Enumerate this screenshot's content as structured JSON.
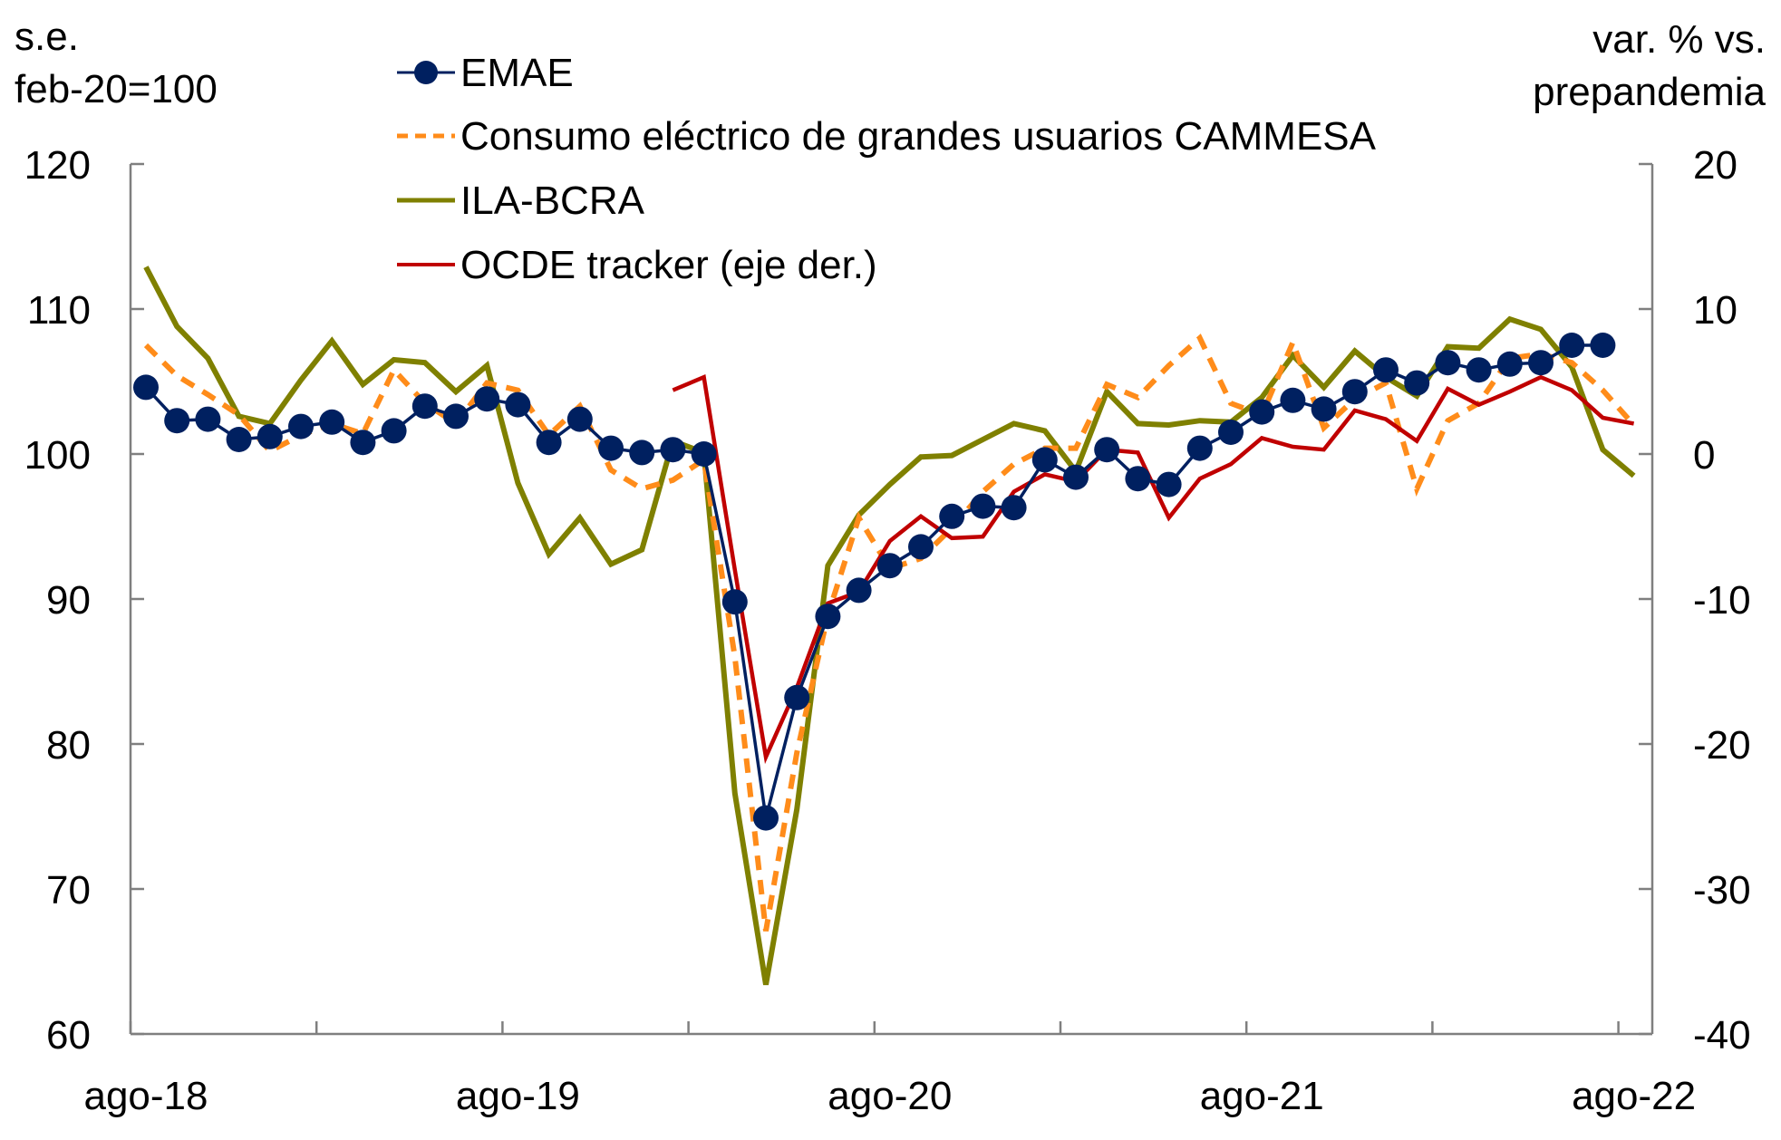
{
  "chart_data": {
    "type": "line",
    "title": "",
    "left_axis": {
      "label_lines": [
        "s.e.",
        "feb-20=100"
      ],
      "ylim": [
        60,
        120
      ],
      "ticks": [
        60,
        70,
        80,
        90,
        100,
        110,
        120
      ],
      "tick_labels": [
        "60",
        "70",
        "80",
        "90",
        "100",
        "110",
        "120"
      ]
    },
    "right_axis": {
      "label_lines": [
        "var. % vs.",
        "prepandemia"
      ],
      "ylim": [
        -40,
        20
      ],
      "ticks": [
        -40,
        -30,
        -20,
        -10,
        0,
        10,
        20
      ],
      "tick_labels": [
        "-40",
        "-30",
        "-20",
        "-10",
        "0",
        "10",
        "20"
      ]
    },
    "x": [
      "ago-18",
      "sep-18",
      "oct-18",
      "nov-18",
      "dic-18",
      "ene-19",
      "feb-19",
      "mar-19",
      "abr-19",
      "may-19",
      "jun-19",
      "jul-19",
      "ago-19",
      "sep-19",
      "oct-19",
      "nov-19",
      "dic-19",
      "ene-20",
      "feb-20",
      "mar-20",
      "abr-20",
      "may-20",
      "jun-20",
      "jul-20",
      "ago-20",
      "sep-20",
      "oct-20",
      "nov-20",
      "dic-20",
      "ene-21",
      "feb-21",
      "mar-21",
      "abr-21",
      "may-21",
      "jun-21",
      "jul-21",
      "ago-21",
      "sep-21",
      "oct-21",
      "nov-21",
      "dic-21",
      "ene-22",
      "feb-22",
      "mar-22",
      "abr-22",
      "may-22",
      "jun-22",
      "jul-22",
      "ago-22"
    ],
    "x_tick_labels": [
      "ago-18",
      "ago-19",
      "ago-20",
      "ago-21",
      "ago-22"
    ],
    "x_tick_label_indices": [
      0,
      12,
      24,
      36,
      48
    ],
    "x_minor_tick_every_months": 6,
    "grid": false,
    "legend_position": "top-left",
    "series": [
      {
        "name": "EMAE",
        "axis": "left",
        "style": "line-markers",
        "color": "#002060",
        "values": [
          104.6,
          102.3,
          102.4,
          101.0,
          101.2,
          101.9,
          102.2,
          100.8,
          101.6,
          103.3,
          102.6,
          103.8,
          103.4,
          100.8,
          102.4,
          100.4,
          100.1,
          100.3,
          100.0,
          89.8,
          74.9,
          83.2,
          88.8,
          90.6,
          92.3,
          93.6,
          95.7,
          96.4,
          96.3,
          99.6,
          98.4,
          100.3,
          98.3,
          97.9,
          100.4,
          101.5,
          102.9,
          103.7,
          103.1,
          104.3,
          105.8,
          104.9,
          106.3,
          105.8,
          106.2,
          106.3,
          107.5,
          107.5,
          null
        ]
      },
      {
        "name": "Consumo eléctrico de grandes usuarios CAMMESA",
        "axis": "left",
        "style": "dashed",
        "color": "#FF8C1A",
        "values": [
          107.5,
          105.4,
          104.1,
          102.7,
          100.2,
          101.3,
          102.1,
          101.4,
          105.8,
          103.5,
          102.1,
          104.9,
          104.4,
          101.3,
          103.3,
          98.9,
          97.6,
          98.2,
          99.6,
          86.0,
          67.1,
          79.4,
          88.9,
          95.6,
          92.1,
          92.8,
          94.9,
          97.4,
          99.3,
          100.4,
          100.4,
          104.8,
          103.9,
          106.1,
          108.0,
          103.5,
          102.7,
          107.7,
          101.8,
          103.8,
          104.9,
          97.6,
          102.3,
          103.5,
          106.6,
          106.9,
          106.3,
          104.4,
          102.0
        ]
      },
      {
        "name": "ILA-BCRA",
        "axis": "left",
        "style": "solid",
        "color": "#7F8000",
        "values": [
          112.9,
          108.8,
          106.6,
          102.6,
          102.1,
          105.1,
          107.8,
          104.8,
          106.5,
          106.3,
          104.3,
          106.1,
          98.0,
          93.1,
          95.6,
          92.4,
          93.4,
          100.9,
          100.1,
          76.6,
          63.4,
          75.5,
          92.3,
          95.8,
          97.9,
          99.8,
          99.9,
          101.0,
          102.1,
          101.6,
          98.8,
          104.3,
          102.1,
          102.0,
          102.3,
          102.2,
          103.9,
          106.8,
          104.6,
          107.1,
          105.3,
          104.0,
          107.4,
          107.3,
          109.3,
          108.6,
          106.0,
          100.3,
          98.5
        ]
      },
      {
        "name": "OCDE tracker (eje der.)",
        "axis": "right",
        "style": "solid",
        "color": "#C00000",
        "values": [
          null,
          null,
          null,
          null,
          null,
          null,
          null,
          null,
          null,
          null,
          null,
          null,
          null,
          null,
          null,
          null,
          null,
          4.4,
          5.3,
          -8.0,
          -20.9,
          -16.1,
          -10.3,
          -9.5,
          -6.0,
          -4.3,
          -5.8,
          -5.7,
          -2.6,
          -1.4,
          -1.9,
          0.3,
          0.1,
          -4.4,
          -1.7,
          -0.7,
          1.1,
          0.5,
          0.3,
          3.0,
          2.4,
          0.9,
          4.5,
          3.4,
          4.3,
          5.3,
          4.4,
          2.5,
          2.1
        ]
      }
    ]
  }
}
